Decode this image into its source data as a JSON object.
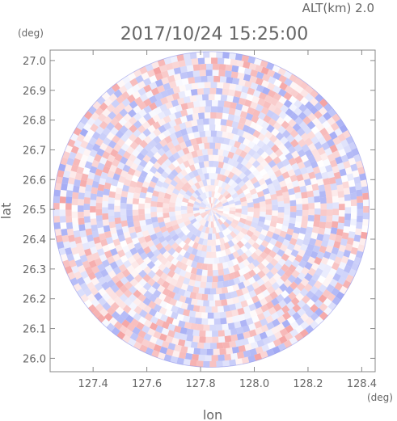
{
  "header": {
    "altitude_label": "ALT(km) 2.0",
    "timestamp": "2017/10/24 15:25:00"
  },
  "chart_data": {
    "type": "heatmap",
    "title": "2017/10/24 15:25:00",
    "subtitle": "ALT(km) 2.0",
    "xlabel": "lon",
    "ylabel": "lat",
    "x_unit": "(deg)",
    "y_unit": "(deg)",
    "xlim": [
      127.24,
      128.45
    ],
    "ylim": [
      25.955,
      27.035
    ],
    "x_ticks": [
      "127.4",
      "127.6",
      "127.8",
      "128.0",
      "128.2",
      "128.4"
    ],
    "y_ticks": [
      "26.0",
      "26.1",
      "26.2",
      "26.3",
      "26.4",
      "26.5",
      "26.6",
      "26.7",
      "26.8",
      "26.9",
      "27.0"
    ],
    "center": {
      "lon": 127.84,
      "lat": 26.5
    },
    "radius_deg_lat": 0.53,
    "colors": {
      "positive": "#f4a0a0",
      "negative": "#a0a8f4",
      "frame": "#888888"
    }
  }
}
